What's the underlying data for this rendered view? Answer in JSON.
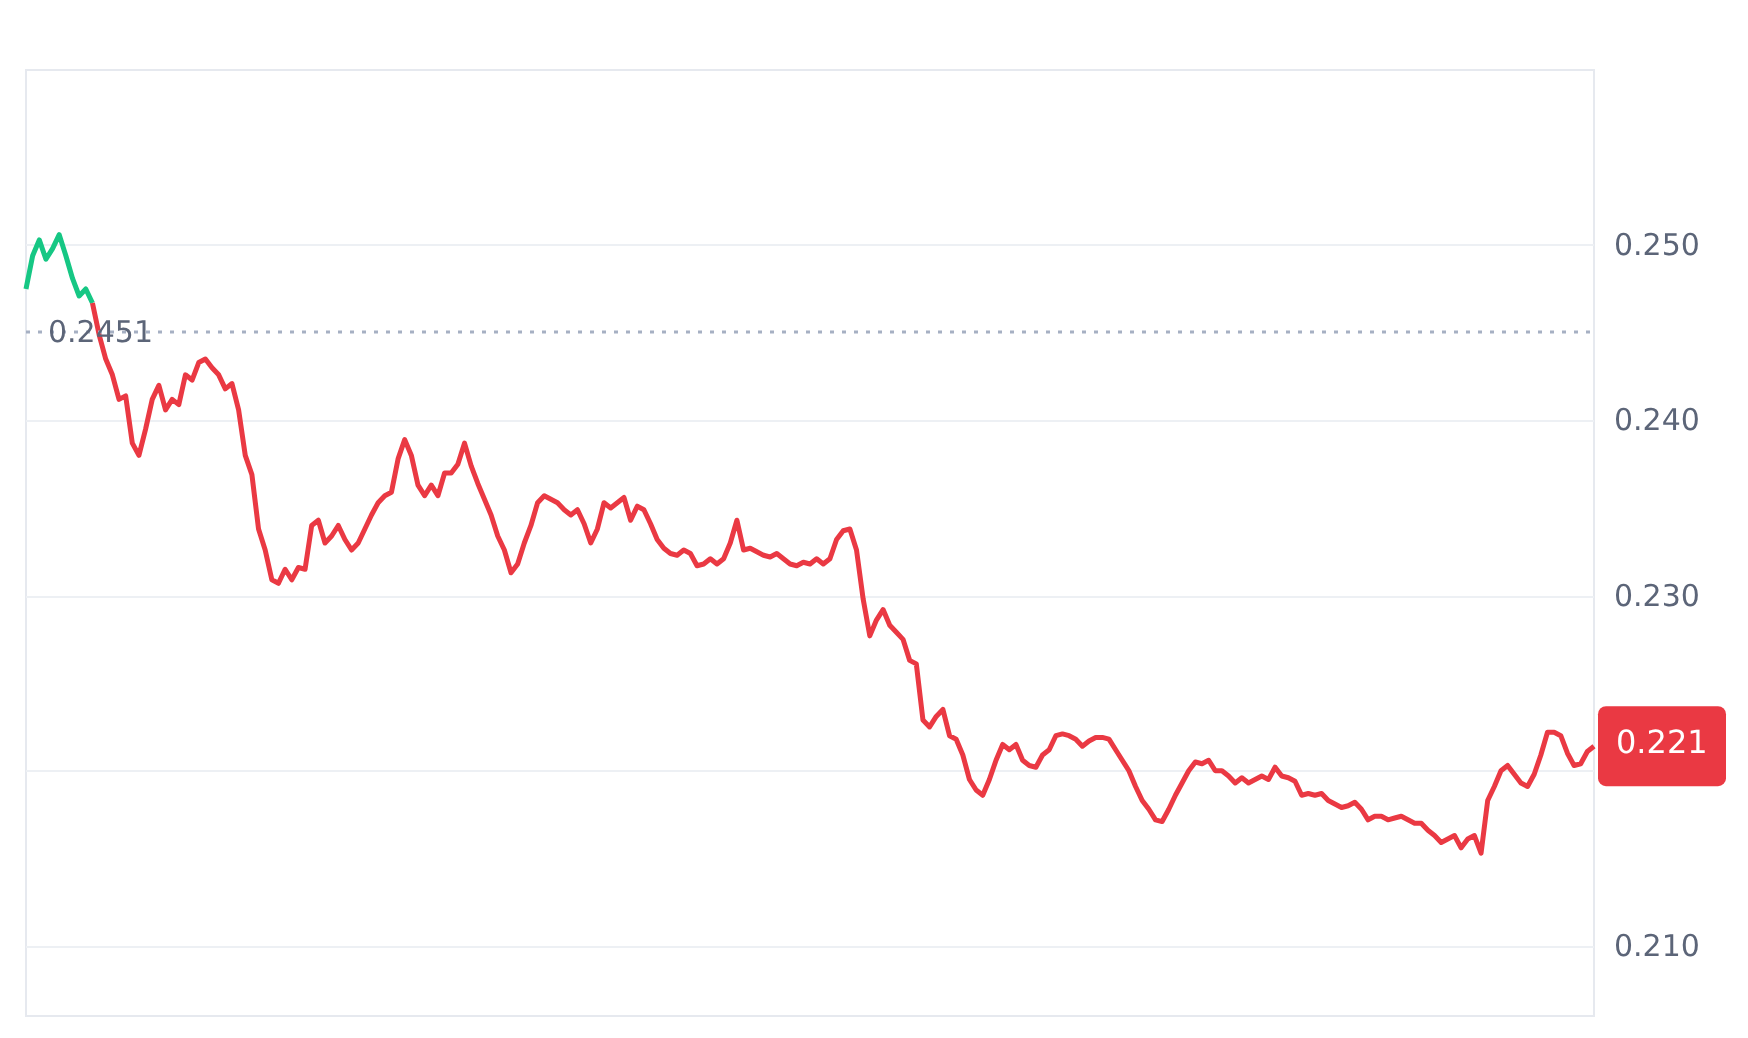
{
  "chart_data": {
    "type": "line",
    "categories": [
      null,
      null,
      null,
      null,
      null,
      null,
      null,
      null,
      null,
      null,
      null,
      null,
      null,
      null,
      null,
      null,
      null,
      null,
      null,
      null,
      null,
      null,
      null,
      null,
      null,
      null,
      null,
      null,
      null,
      null,
      null,
      null,
      null,
      null,
      null,
      null,
      null,
      null,
      null,
      null,
      null,
      null,
      null,
      null,
      null,
      null,
      null,
      null,
      null,
      null,
      null,
      null,
      null,
      null,
      null,
      null,
      null,
      null,
      null,
      null,
      null,
      null,
      null,
      null,
      null,
      null,
      null,
      null,
      null,
      null,
      null,
      null,
      null,
      null,
      null,
      null,
      null,
      null,
      null,
      null,
      null,
      null,
      null,
      null,
      null,
      null,
      null,
      null,
      null,
      null,
      null,
      null,
      null,
      null,
      null,
      null,
      null,
      null,
      null,
      null,
      null,
      null,
      null,
      null,
      null,
      null,
      null,
      null,
      null,
      null,
      null,
      null,
      null,
      null,
      null,
      null,
      null,
      null,
      null,
      null,
      null,
      null,
      null,
      null,
      null,
      null,
      null,
      null,
      null,
      null,
      null,
      null,
      null,
      null,
      null,
      null,
      null,
      null,
      null,
      null,
      null,
      null,
      null,
      null,
      null,
      null,
      null,
      null,
      null,
      null,
      null,
      null,
      null,
      null,
      null,
      null,
      null,
      null,
      null,
      null,
      null,
      null,
      null,
      null,
      null,
      null,
      null,
      null,
      null,
      null,
      null,
      null,
      null,
      null,
      null,
      null,
      null,
      null,
      null,
      null,
      null,
      null,
      null,
      null,
      null,
      null,
      null,
      null,
      null,
      null,
      null,
      null,
      null,
      null,
      null,
      null,
      null,
      null,
      null,
      null,
      null,
      null,
      null,
      null,
      null,
      null,
      null,
      null,
      null,
      null,
      null,
      null,
      null,
      null,
      null,
      null,
      null,
      null,
      null,
      null,
      null,
      null,
      null,
      null,
      null,
      null,
      null,
      null,
      null,
      null,
      null,
      null,
      null,
      null,
      null,
      null,
      null
    ],
    "series": [
      {
        "color": "#16c784",
        "values": [
          0.2475,
          0.2494,
          0.2503,
          0.2492,
          0.2498,
          0.2506,
          0.2494,
          0.2481,
          0.2471,
          0.2475,
          0.2467,
          null,
          null,
          null,
          null,
          null,
          null,
          null,
          null,
          null,
          null,
          null,
          null,
          null,
          null,
          null,
          null,
          null,
          null,
          null,
          null,
          null,
          null,
          null,
          null,
          null,
          null,
          null,
          null,
          null,
          null,
          null,
          null,
          null,
          null,
          null,
          null,
          null,
          null,
          null,
          null,
          null,
          null,
          null,
          null,
          null,
          null,
          null,
          null,
          null,
          null,
          null,
          null,
          null,
          null,
          null,
          null,
          null,
          null,
          null,
          null,
          null,
          null,
          null,
          null,
          null,
          null,
          null,
          null,
          null,
          null,
          null,
          null,
          null,
          null,
          null,
          null,
          null,
          null,
          null,
          null,
          null,
          null,
          null,
          null,
          null,
          null,
          null,
          null,
          null,
          null,
          null,
          null,
          null,
          null,
          null,
          null,
          null,
          null,
          null,
          null,
          null,
          null,
          null,
          null,
          null,
          null,
          null,
          null,
          null,
          null,
          null,
          null,
          null,
          null,
          null,
          null,
          null,
          null,
          null,
          null,
          null,
          null,
          null,
          null,
          null,
          null,
          null,
          null,
          null,
          null,
          null,
          null,
          null,
          null,
          null,
          null,
          null,
          null,
          null,
          null,
          null,
          null,
          null,
          null,
          null,
          null,
          null,
          null,
          null,
          null,
          null,
          null,
          null,
          null,
          null,
          null,
          null,
          null,
          null,
          null,
          null,
          null,
          null,
          null,
          null,
          null,
          null,
          null,
          null,
          null,
          null,
          null,
          null,
          null,
          null,
          null,
          null,
          null,
          null,
          null,
          null,
          null,
          null,
          null,
          null,
          null,
          null,
          null,
          null,
          null,
          null,
          null,
          null,
          null,
          null,
          null,
          null,
          null,
          null,
          null,
          null,
          null,
          null,
          null,
          null,
          null,
          null,
          null,
          null,
          null,
          null,
          null,
          null,
          null,
          null,
          null,
          null,
          null,
          null,
          null,
          null,
          null,
          null,
          null,
          null,
          null
        ]
      },
      {
        "color": "#ea3943",
        "values": [
          null,
          null,
          null,
          null,
          null,
          null,
          null,
          null,
          null,
          null,
          0.2467,
          0.2449,
          0.2435,
          0.2426,
          0.2412,
          0.2414,
          0.2387,
          0.238,
          0.2395,
          0.2412,
          0.242,
          0.2406,
          0.2412,
          0.2409,
          0.2426,
          0.2423,
          0.2433,
          0.2435,
          0.243,
          0.2426,
          0.2418,
          0.2421,
          0.2406,
          0.238,
          0.2369,
          0.2338,
          0.2326,
          0.2309,
          0.2307,
          0.2315,
          0.2309,
          0.2316,
          0.2315,
          0.234,
          0.2343,
          0.233,
          0.2334,
          0.234,
          0.2332,
          0.2326,
          0.233,
          0.2338,
          0.2346,
          0.2353,
          0.2357,
          0.2359,
          0.2378,
          0.2389,
          0.238,
          0.2363,
          0.2357,
          0.2363,
          0.2357,
          0.237,
          0.237,
          0.2375,
          0.2387,
          0.2374,
          0.2364,
          0.2355,
          0.2346,
          0.2334,
          0.2326,
          0.2313,
          0.2318,
          0.233,
          0.234,
          0.2353,
          0.2357,
          0.2355,
          0.2353,
          0.2349,
          0.2346,
          0.2349,
          0.2341,
          0.233,
          0.2338,
          0.2353,
          0.235,
          0.2353,
          0.2356,
          0.2343,
          0.2351,
          0.2349,
          0.2341,
          0.2332,
          0.2327,
          0.2324,
          0.2323,
          0.2326,
          0.2324,
          0.2317,
          0.2318,
          0.2321,
          0.2318,
          0.2321,
          0.233,
          0.2343,
          0.2326,
          0.2327,
          0.2325,
          0.2323,
          0.2322,
          0.2324,
          0.2321,
          0.2318,
          0.2317,
          0.2319,
          0.2318,
          0.2321,
          0.2318,
          0.2321,
          0.2332,
          0.2337,
          0.2338,
          0.2326,
          0.2298,
          0.2277,
          0.2286,
          0.2292,
          0.2283,
          0.2279,
          0.2275,
          0.2263,
          0.2261,
          0.2229,
          0.2225,
          0.2231,
          0.2235,
          0.222,
          0.2218,
          0.2209,
          0.2195,
          0.2189,
          0.2186,
          0.2195,
          0.2206,
          0.2215,
          0.2212,
          0.2215,
          0.2206,
          0.2203,
          0.2202,
          0.2209,
          0.2212,
          0.222,
          0.2221,
          0.222,
          0.2218,
          0.2214,
          0.2217,
          0.2219,
          0.2219,
          0.2218,
          0.2212,
          0.2206,
          0.22,
          0.2191,
          0.2183,
          0.2178,
          0.2172,
          0.2171,
          0.2178,
          0.2186,
          0.2193,
          0.22,
          0.2205,
          0.2204,
          0.2206,
          0.22,
          0.22,
          0.2197,
          0.2193,
          0.2196,
          0.2193,
          0.2195,
          0.2197,
          0.2195,
          0.2202,
          0.2197,
          0.2196,
          0.2194,
          0.2186,
          0.2187,
          0.2186,
          0.2187,
          0.2183,
          0.2181,
          0.2179,
          0.218,
          0.2182,
          0.2178,
          0.2172,
          0.2174,
          0.2174,
          0.2172,
          0.2173,
          0.2174,
          0.2172,
          0.217,
          0.217,
          0.2166,
          0.2163,
          0.2159,
          0.2161,
          0.2163,
          0.2156,
          0.2161,
          0.2163,
          0.2153,
          0.2183,
          0.2191,
          0.22,
          0.2203,
          0.2198,
          0.2193,
          0.2191,
          0.2198,
          0.2209,
          0.2222,
          0.2222,
          0.222,
          0.221,
          0.2203,
          0.2204,
          0.2211,
          0.2214
        ]
      }
    ],
    "ylim": [
      0.206,
      0.26
    ],
    "yticks": [
      {
        "value": 0.21,
        "label": "0.210"
      },
      {
        "value": 0.22,
        "label": null
      },
      {
        "value": 0.23,
        "label": "0.230"
      },
      {
        "value": 0.24,
        "label": "0.240"
      },
      {
        "value": 0.25,
        "label": "0.250"
      }
    ],
    "grid": "y",
    "ref_lines": [
      {
        "axis": "y",
        "value": 0.2451,
        "label": "0.2451",
        "line_style": "dotted",
        "color": "#a6b0c3"
      }
    ],
    "annotations": [
      "0.221"
    ]
  }
}
